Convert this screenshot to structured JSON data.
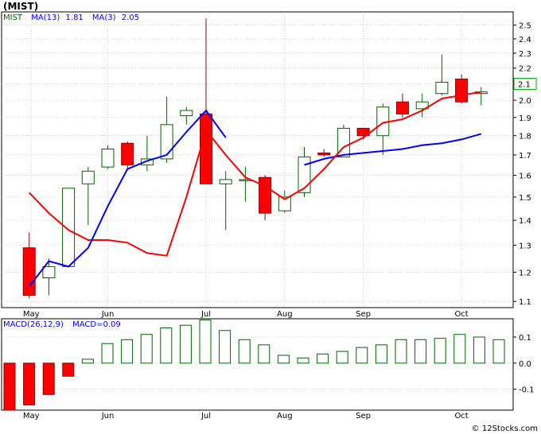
{
  "header": {
    "ticker": "(MIST)",
    "legend_symbol": "MIST",
    "ma13_label": "MA(13)",
    "ma13_value": "1.81",
    "ma3_label": "MA(3)",
    "ma3_value": "2.05"
  },
  "macd_header": {
    "label": "MACD(26,12,9)",
    "value_label": "MACD=0.09"
  },
  "watermark": "© 12Stocks.com",
  "colors": {
    "up": "#006400",
    "down": "#ff0000",
    "ma13": "#0000ff",
    "ma3": "#ff0000",
    "macd": "#006400",
    "text_blue": "#0000ff",
    "last_price_box": "#00aa00",
    "frame": "#000000",
    "grid": "#bdbdbd"
  },
  "chart_data": [
    {
      "type": "candlestick",
      "title": "(MIST)",
      "xlabel": "",
      "ylabel": "",
      "ylim": [
        1.08,
        2.6
      ],
      "y_scale": "log",
      "y_ticks": [
        1.1,
        1.2,
        1.3,
        1.4,
        1.5,
        1.6,
        1.7,
        1.8,
        1.9,
        2.0,
        2.1,
        2.2,
        2.3,
        2.4,
        2.5
      ],
      "x_month_labels": [
        "May",
        "Jun",
        "Jul",
        "Aug",
        "Sep",
        "Oct"
      ],
      "x_month_positions": [
        1.1,
        5.0,
        10.0,
        14.0,
        18.0,
        23.0
      ],
      "last_price": "2.1",
      "grid": true,
      "legend": "top-left",
      "candles": [
        {
          "open": 1.29,
          "high": 1.35,
          "low": 1.11,
          "close": 1.12
        },
        {
          "open": 1.18,
          "high": 1.25,
          "low": 1.12,
          "close": 1.22
        },
        {
          "open": 1.22,
          "high": 1.54,
          "low": 1.22,
          "close": 1.54
        },
        {
          "open": 1.56,
          "high": 1.64,
          "low": 1.38,
          "close": 1.62
        },
        {
          "open": 1.64,
          "high": 1.75,
          "low": 1.63,
          "close": 1.73
        },
        {
          "open": 1.76,
          "high": 1.77,
          "low": 1.63,
          "close": 1.65
        },
        {
          "open": 1.65,
          "high": 1.8,
          "low": 1.62,
          "close": 1.68
        },
        {
          "open": 1.68,
          "high": 2.02,
          "low": 1.66,
          "close": 1.86
        },
        {
          "open": 1.91,
          "high": 1.96,
          "low": 1.86,
          "close": 1.94
        },
        {
          "open": 1.92,
          "high": 2.55,
          "low": 1.56,
          "close": 1.56
        },
        {
          "open": 1.56,
          "high": 1.62,
          "low": 1.36,
          "close": 1.58
        },
        {
          "open": 1.58,
          "high": 1.64,
          "low": 1.48,
          "close": 1.58
        },
        {
          "open": 1.59,
          "high": 1.6,
          "low": 1.4,
          "close": 1.43
        },
        {
          "open": 1.44,
          "high": 1.53,
          "low": 1.43,
          "close": 1.5
        },
        {
          "open": 1.52,
          "high": 1.74,
          "low": 1.5,
          "close": 1.69
        },
        {
          "open": 1.71,
          "high": 1.73,
          "low": 1.69,
          "close": 1.7
        },
        {
          "open": 1.69,
          "high": 1.86,
          "low": 1.69,
          "close": 1.84
        },
        {
          "open": 1.84,
          "high": 1.84,
          "low": 1.78,
          "close": 1.8
        },
        {
          "open": 1.8,
          "high": 1.98,
          "low": 1.7,
          "close": 1.96
        },
        {
          "open": 1.99,
          "high": 2.04,
          "low": 1.9,
          "close": 1.92
        },
        {
          "open": 1.95,
          "high": 2.04,
          "low": 1.9,
          "close": 1.99
        },
        {
          "open": 2.04,
          "high": 2.29,
          "low": 2.03,
          "close": 2.11
        },
        {
          "open": 2.13,
          "high": 2.16,
          "low": 1.98,
          "close": 1.99
        },
        {
          "open": 2.04,
          "high": 2.08,
          "low": 1.97,
          "close": 2.05
        }
      ],
      "series": [
        {
          "name": "MA(13)",
          "values": [
            null,
            null,
            null,
            null,
            null,
            null,
            null,
            null,
            null,
            null,
            null,
            null,
            null,
            null,
            1.65,
            1.68,
            1.7,
            1.71,
            1.72,
            1.73,
            1.75,
            1.76,
            1.78,
            1.81
          ]
        },
        {
          "name": "MA(3)",
          "values": [
            1.52,
            1.43,
            1.36,
            1.32,
            1.32,
            1.31,
            1.27,
            1.26,
            1.5,
            1.83,
            1.7,
            1.59,
            1.55,
            1.49,
            1.54,
            1.63,
            1.74,
            1.79,
            1.87,
            1.89,
            1.94,
            2.01,
            2.03,
            2.05
          ]
        },
        {
          "name": "MA(3) continuation",
          "values": [
            1.15,
            1.24,
            1.22,
            1.29,
            1.46,
            1.63,
            1.67,
            1.7,
            1.82,
            1.94,
            1.79,
            null,
            null,
            null,
            null,
            null,
            null,
            null,
            null,
            null,
            null,
            null,
            null,
            null
          ]
        }
      ]
    },
    {
      "type": "bar",
      "title": "MACD(26,12,9)",
      "ylim": [
        -0.18,
        0.17
      ],
      "y_ticks": [
        -0.1,
        0.0,
        0.1
      ],
      "y_tick_labels": [
        "-0.1",
        "0.0",
        "0.1"
      ],
      "x_month_labels": [
        "May",
        "Jun",
        "Jul",
        "Aug",
        "Sep",
        "Oct"
      ],
      "values": [
        -0.18,
        -0.16,
        -0.12,
        -0.05,
        0.015,
        0.075,
        0.09,
        0.11,
        0.135,
        0.145,
        0.165,
        0.125,
        0.09,
        0.07,
        0.03,
        0.02,
        0.035,
        0.045,
        0.06,
        0.07,
        0.09,
        0.09,
        0.095,
        0.11,
        0.1,
        0.09
      ]
    }
  ]
}
